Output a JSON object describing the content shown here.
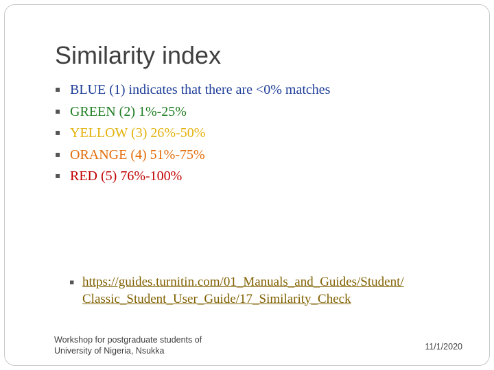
{
  "slide": {
    "title": "Similarity index",
    "bullets": [
      {
        "text": "BLUE (1) indicates that there are <0% matches",
        "color": "#1f3f99"
      },
      {
        "text": "GREEN (2) 1%-25%",
        "color": "#1e7d22"
      },
      {
        "text": "YELLOW (3) 26%-50%",
        "color": "#e3b20b"
      },
      {
        "text": "ORANGE (4) 51%-75%",
        "color": "#e36c09"
      },
      {
        "text": "RED (5) 76%-100%",
        "color": "#c00000"
      }
    ],
    "link": {
      "line1": "https://guides.turnitin.com/01_Manuals_and_Guides/Student/",
      "line2": "Classic_Student_User_Guide/17_Similarity_Check",
      "color": "#806000"
    },
    "footer": {
      "line1": "Workshop for postgraduate students of",
      "line2": "University of Nigeria, Nsukka",
      "date": "11/1/2020"
    }
  }
}
